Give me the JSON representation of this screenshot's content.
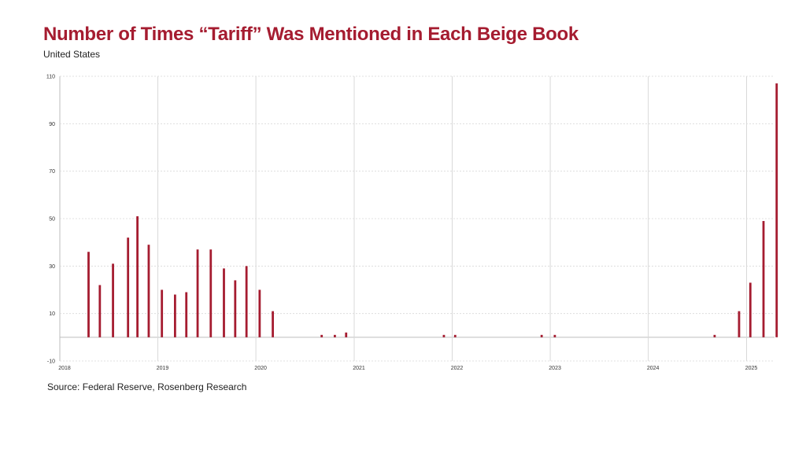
{
  "colors": {
    "title": "#A51C30",
    "bar": "#A51C30",
    "grid": "#D9D9D9",
    "zero_line": "#BDBDBD"
  },
  "header": {
    "title": "Number of Times “Tariff” Was Mentioned in Each Beige Book",
    "subtitle": "United States"
  },
  "footer": {
    "source": "Source: Federal Reserve, Rosenberg Research"
  },
  "chart_data": {
    "type": "bar",
    "title": "Number of Times “Tariff” Was Mentioned in Each Beige Book",
    "subtitle": "United States",
    "xlabel": "",
    "ylabel": "",
    "xlim": [
      "2018-01-01",
      "2025-04-15"
    ],
    "ylim": [
      -10,
      110
    ],
    "yticks": [
      -10,
      10,
      30,
      50,
      70,
      90,
      110
    ],
    "xticks": [
      "2018",
      "2019",
      "2020",
      "2021",
      "2022",
      "2023",
      "2024",
      "2025"
    ],
    "grid": true,
    "legend": "none",
    "series": [
      {
        "dates": [
          "2018-04-18",
          "2018-05-30",
          "2018-07-18",
          "2018-09-12",
          "2018-10-17",
          "2018-11-28",
          "2019-01-16",
          "2019-03-06",
          "2019-04-17",
          "2019-05-29",
          "2019-07-17",
          "2019-09-04",
          "2019-10-16",
          "2019-11-27",
          "2020-01-15",
          "2020-03-04",
          "2020-09-02",
          "2020-10-21",
          "2020-12-02",
          "2021-12-01",
          "2022-01-12",
          "2022-11-30",
          "2023-01-18",
          "2024-09-04",
          "2024-12-04",
          "2025-01-15",
          "2025-03-05",
          "2025-04-23"
        ],
        "values": [
          36,
          22,
          31,
          42,
          51,
          39,
          20,
          18,
          19,
          37,
          37,
          29,
          24,
          30,
          20,
          11,
          1,
          1,
          2,
          1,
          1,
          1,
          1,
          1,
          11,
          23,
          49,
          107
        ]
      }
    ]
  }
}
